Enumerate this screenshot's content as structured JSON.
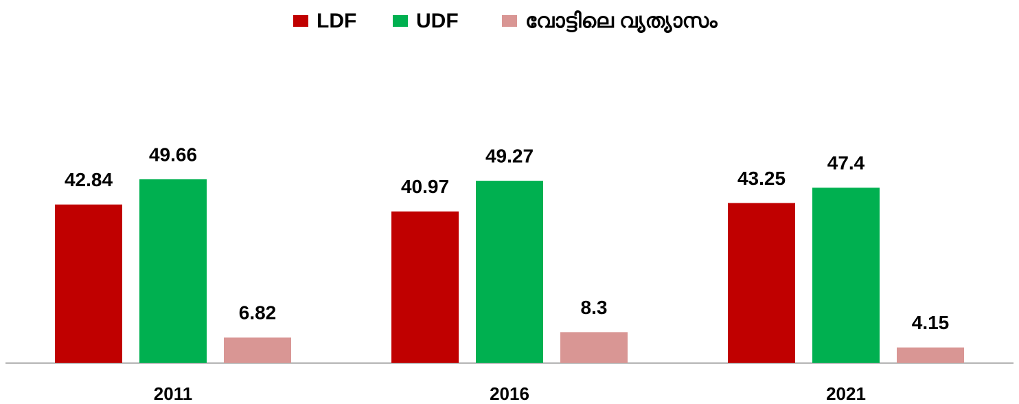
{
  "chart_data": {
    "type": "bar",
    "categories": [
      "2011",
      "2016",
      "2021"
    ],
    "series": [
      {
        "name": "LDF",
        "color": "#c00000",
        "values": [
          42.84,
          40.97,
          43.25
        ]
      },
      {
        "name": "UDF",
        "color": "#00b050",
        "values": [
          49.66,
          49.27,
          47.4
        ]
      },
      {
        "name": "വോട്ടിലെ വ്യത്യാസം",
        "color": "#d99694",
        "values": [
          6.82,
          8.3,
          4.15
        ]
      }
    ]
  }
}
